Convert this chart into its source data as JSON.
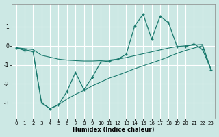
{
  "xlabel": "Humidex (Indice chaleur)",
  "bg_color": "#cce8e4",
  "grid_color": "#ffffff",
  "line_color": "#1a7a6e",
  "x_values": [
    0,
    1,
    2,
    3,
    4,
    5,
    6,
    7,
    8,
    9,
    10,
    11,
    12,
    13,
    14,
    15,
    16,
    17,
    18,
    19,
    20,
    21,
    22,
    23
  ],
  "main_y": [
    -0.1,
    -0.25,
    -0.3,
    -3.0,
    -3.3,
    -3.1,
    -2.4,
    -1.4,
    -2.3,
    -1.65,
    -0.85,
    -0.8,
    -0.7,
    -0.45,
    1.05,
    1.65,
    0.35,
    1.55,
    1.2,
    -0.05,
    -0.05,
    0.1,
    -0.2,
    -1.25
  ],
  "upper_band": [
    -0.1,
    -0.15,
    -0.2,
    -0.5,
    -0.6,
    -0.7,
    -0.75,
    -0.78,
    -0.8,
    -0.8,
    -0.78,
    -0.75,
    -0.7,
    -0.62,
    -0.52,
    -0.42,
    -0.32,
    -0.22,
    -0.12,
    -0.04,
    0.0,
    0.04,
    0.07,
    -1.25
  ],
  "lower_band": [
    -0.1,
    -0.2,
    -0.3,
    -3.0,
    -3.3,
    -3.1,
    -2.8,
    -2.55,
    -2.35,
    -2.1,
    -1.9,
    -1.7,
    -1.55,
    -1.38,
    -1.2,
    -1.05,
    -0.9,
    -0.75,
    -0.58,
    -0.4,
    -0.25,
    -0.12,
    0.0,
    -1.25
  ],
  "ylim": [
    -3.8,
    2.2
  ],
  "xlim": [
    -0.5,
    23.5
  ],
  "yticks": [
    -3,
    -2,
    -1,
    0,
    1
  ],
  "xticks": [
    0,
    1,
    2,
    3,
    4,
    5,
    6,
    7,
    8,
    9,
    10,
    11,
    12,
    13,
    14,
    15,
    16,
    17,
    18,
    19,
    20,
    21,
    22,
    23
  ]
}
